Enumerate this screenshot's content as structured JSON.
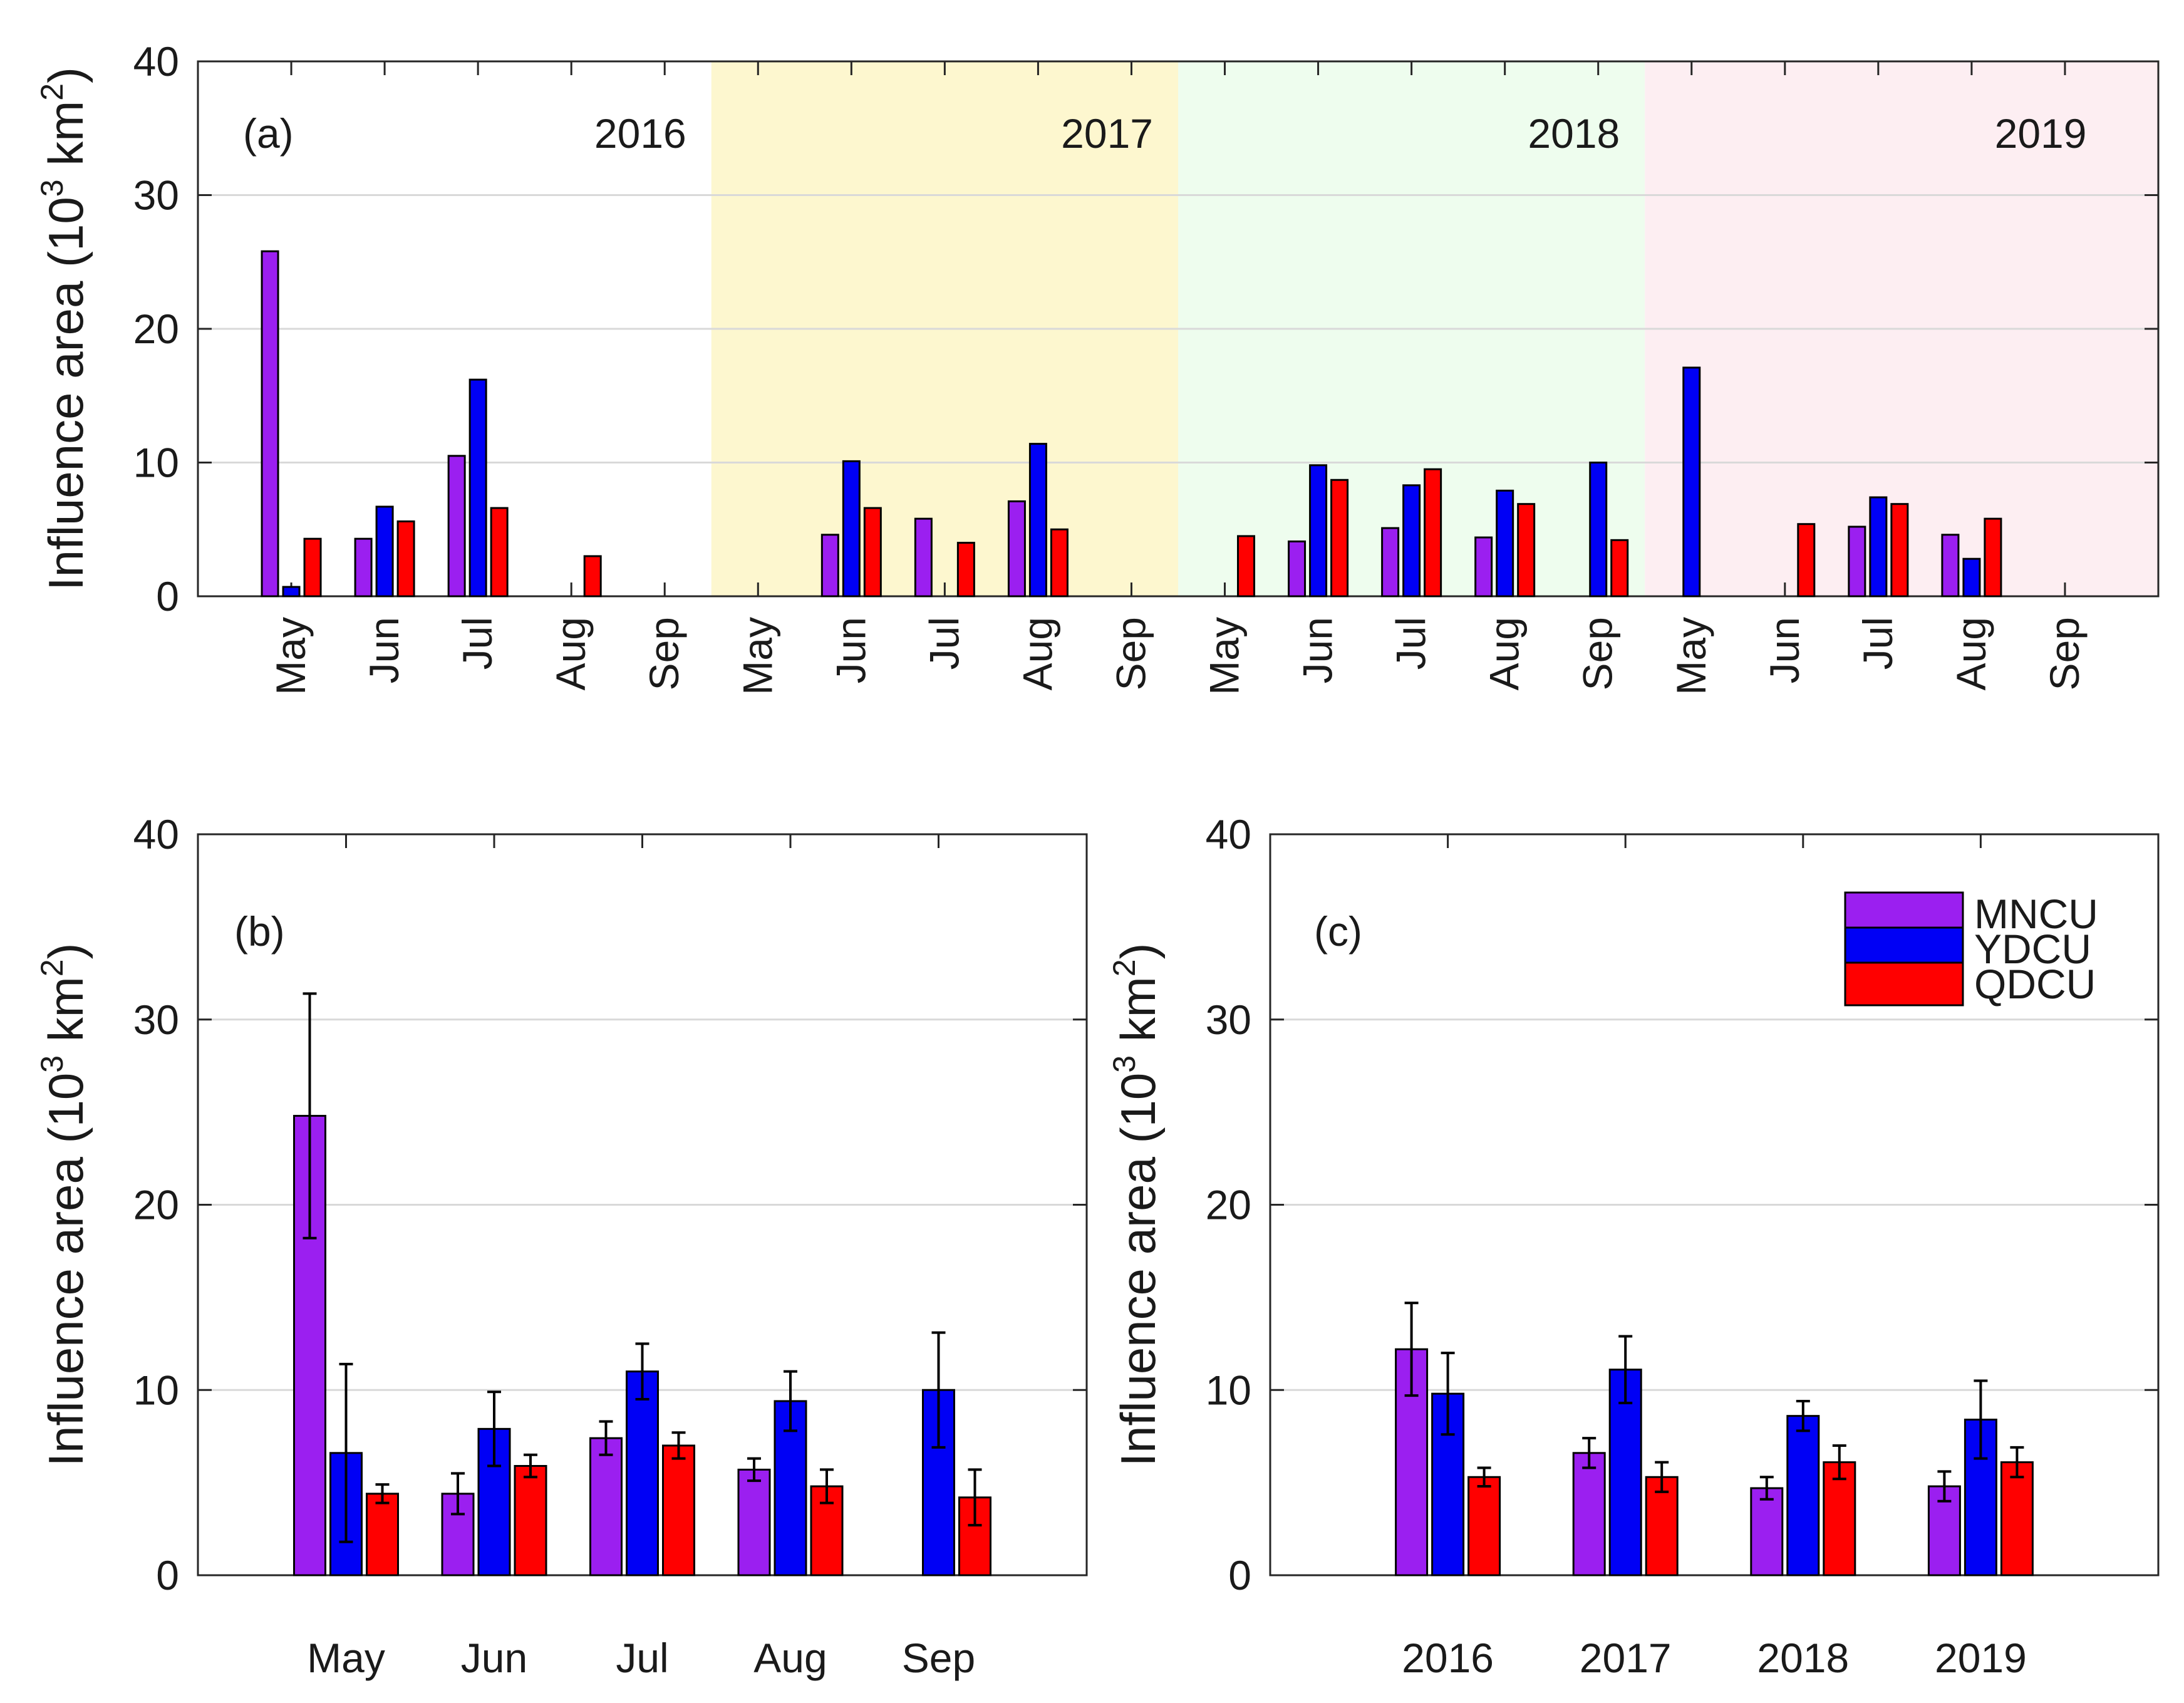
{
  "colors": {
    "MNCU": "#9b1ff0",
    "YDCU": "#0000f5",
    "QDCU": "#ff0000",
    "bg_2017": "#fdf7cf",
    "bg_2018": "#eefdee",
    "bg_2019": "#fdeef2",
    "grid": "#d9d9d9",
    "axis": "#262626"
  },
  "ylabel": {
    "main": "Influence area (10",
    "sup": "3",
    "unit": " km",
    "sup2": "2",
    "close": ")"
  },
  "chart_data": [
    {
      "type": "bar",
      "panel": "(a)",
      "ylim": [
        0,
        40
      ],
      "yticks": [
        "0",
        "10",
        "20",
        "30",
        "40"
      ],
      "grid": true,
      "years": [
        "2016",
        "2017",
        "2018",
        "2019"
      ],
      "months": [
        "May",
        "Jun",
        "Jul",
        "Aug",
        "Sep"
      ],
      "categories": [
        "May",
        "Jun",
        "Jul",
        "Aug",
        "Sep",
        "May",
        "Jun",
        "Jul",
        "Aug",
        "Sep",
        "May",
        "Jun",
        "Jul",
        "Aug",
        "Sep",
        "May",
        "Jun",
        "Jul",
        "Aug",
        "Sep"
      ],
      "series": [
        {
          "name": "MNCU",
          "values": [
            25.8,
            4.3,
            10.5,
            0,
            0,
            0,
            4.6,
            5.8,
            7.1,
            0,
            0,
            4.1,
            5.1,
            4.4,
            0,
            0,
            0,
            5.2,
            4.6,
            0
          ]
        },
        {
          "name": "YDCU",
          "values": [
            0.7,
            6.7,
            16.2,
            0,
            0,
            0,
            10.1,
            0,
            11.4,
            0,
            0,
            9.8,
            8.3,
            7.9,
            10.0,
            17.1,
            0,
            7.4,
            2.8,
            0
          ]
        },
        {
          "name": "QDCU",
          "values": [
            4.3,
            5.6,
            6.6,
            3.0,
            0,
            0,
            6.6,
            4.0,
            5.0,
            0,
            4.5,
            8.7,
            9.5,
            6.9,
            4.2,
            0,
            5.4,
            6.9,
            5.8,
            0
          ]
        }
      ],
      "ylabel": "Influence area (10^3 km^2)"
    },
    {
      "type": "bar",
      "panel": "(b)",
      "ylim": [
        0,
        40
      ],
      "yticks": [
        "0",
        "10",
        "20",
        "30",
        "40"
      ],
      "grid": true,
      "categories": [
        "May",
        "Jun",
        "Jul",
        "Aug",
        "Sep"
      ],
      "series": [
        {
          "name": "MNCU",
          "values": [
            24.8,
            4.4,
            7.4,
            5.7,
            0
          ],
          "err": [
            6.6,
            1.1,
            0.9,
            0.6,
            0
          ]
        },
        {
          "name": "YDCU",
          "values": [
            6.6,
            7.9,
            11.0,
            9.4,
            10.0
          ],
          "err": [
            4.8,
            2.0,
            1.5,
            1.6,
            3.1
          ]
        },
        {
          "name": "QDCU",
          "values": [
            4.4,
            5.9,
            7.0,
            4.8,
            4.2
          ],
          "err": [
            0.5,
            0.6,
            0.7,
            0.9,
            1.5
          ]
        }
      ],
      "ylabel": "Influence area (10^3 km^2)"
    },
    {
      "type": "bar",
      "panel": "(c)",
      "ylim": [
        0,
        40
      ],
      "yticks": [
        "0",
        "10",
        "20",
        "30",
        "40"
      ],
      "grid": true,
      "categories": [
        "2016",
        "2017",
        "2018",
        "2019"
      ],
      "series": [
        {
          "name": "MNCU",
          "values": [
            12.2,
            6.6,
            4.7,
            4.8
          ],
          "err": [
            2.5,
            0.8,
            0.6,
            0.8
          ]
        },
        {
          "name": "YDCU",
          "values": [
            9.8,
            11.1,
            8.6,
            8.4
          ],
          "err": [
            2.2,
            1.8,
            0.8,
            2.1
          ]
        },
        {
          "name": "QDCU",
          "values": [
            5.3,
            5.3,
            6.1,
            6.1
          ],
          "err": [
            0.5,
            0.8,
            0.9,
            0.8
          ]
        }
      ],
      "legend": {
        "placement": "top-right",
        "entries": [
          "MNCU",
          "YDCU",
          "QDCU"
        ]
      },
      "ylabel": "Influence area (10^3 km^2)"
    }
  ]
}
